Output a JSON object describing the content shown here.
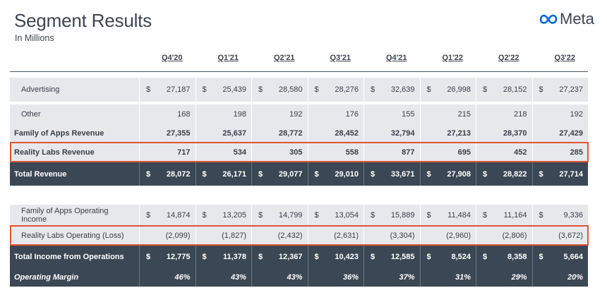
{
  "header": {
    "title": "Segment Results",
    "subtitle": "In Millions",
    "logo_text": "Meta",
    "logo_icon": "meta-infinity-icon"
  },
  "table": {
    "columns": [
      "Q4'20",
      "Q1'21",
      "Q2'21",
      "Q3'21",
      "Q4'21",
      "Q1'22",
      "Q2'22",
      "Q3'22"
    ],
    "currency_symbol": "$",
    "rows": {
      "advertising": {
        "label": "Advertising",
        "values": [
          "27,187",
          "25,439",
          "28,580",
          "28,276",
          "32,639",
          "26,998",
          "28,152",
          "27,237"
        ]
      },
      "other": {
        "label": "Other",
        "values": [
          "168",
          "198",
          "192",
          "176",
          "155",
          "215",
          "218",
          "192"
        ]
      },
      "foa_revenue": {
        "label": "Family of Apps Revenue",
        "values": [
          "27,355",
          "25,637",
          "28,772",
          "28,452",
          "32,794",
          "27,213",
          "28,370",
          "27,429"
        ]
      },
      "rl_revenue": {
        "label": "Reality Labs Revenue",
        "values": [
          "717",
          "534",
          "305",
          "558",
          "877",
          "695",
          "452",
          "285"
        ]
      },
      "total_revenue": {
        "label": "Total Revenue",
        "values": [
          "28,072",
          "26,171",
          "29,077",
          "29,010",
          "33,671",
          "27,908",
          "28,822",
          "27,714"
        ]
      },
      "foa_op_income": {
        "label": "Family of Apps Operating Income",
        "values": [
          "14,874",
          "13,205",
          "14,799",
          "13,054",
          "15,889",
          "11,484",
          "11,164",
          "9,336"
        ]
      },
      "rl_op_loss": {
        "label": "Reality Labs Operating (Loss)",
        "values": [
          "(2,099)",
          "(1,827)",
          "(2,432)",
          "(2,631)",
          "(3,304)",
          "(2,960)",
          "(2,806)",
          "(3,672)"
        ]
      },
      "total_income_ops": {
        "label": "Total Income from Operations",
        "values": [
          "12,775",
          "11,378",
          "12,367",
          "10,423",
          "12,585",
          "8,524",
          "8,358",
          "5,664"
        ]
      },
      "operating_margin": {
        "label": "Operating Margin",
        "values": [
          "46%",
          "43%",
          "43%",
          "36%",
          "37%",
          "31%",
          "29%",
          "20%"
        ]
      }
    }
  },
  "colors": {
    "dark_row": "#3b4754",
    "light_row": "#e6e8ec",
    "highlight_outline": "#e05535",
    "meta_blue": "#0467df"
  }
}
